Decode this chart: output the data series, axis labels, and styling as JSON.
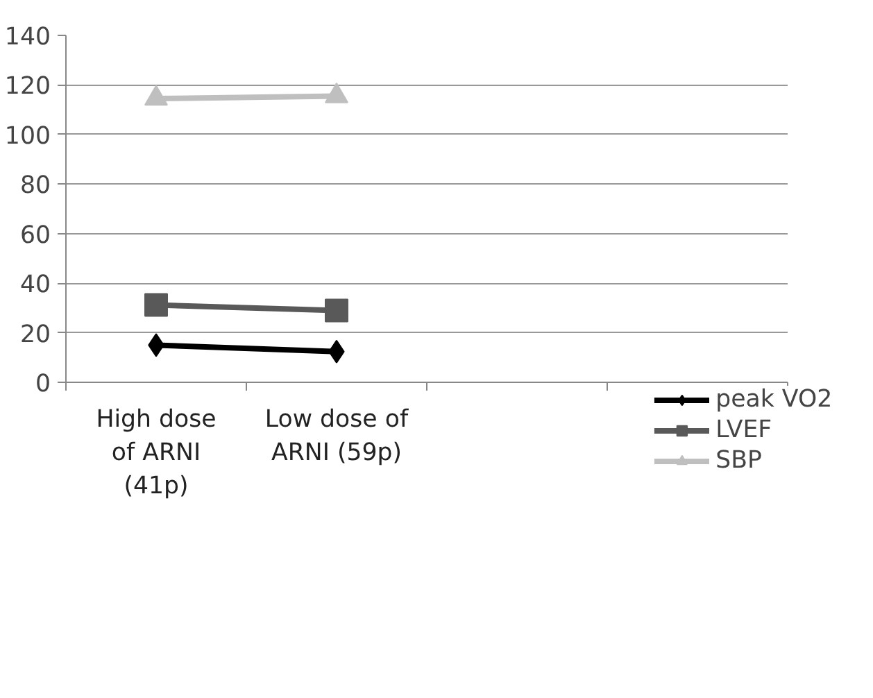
{
  "chart_data": {
    "type": "line",
    "categories": [
      "High dose of ARNI (41p)",
      "Low dose of ARNI (59p)",
      null,
      null
    ],
    "series": [
      {
        "name": "peak VO2",
        "color": "#000000",
        "marker": "diamond",
        "values": [
          15,
          12.4,
          null,
          null
        ]
      },
      {
        "name": "LVEF",
        "color": "#595959",
        "marker": "square",
        "values": [
          31.2,
          29,
          null,
          null
        ]
      },
      {
        "name": "SBP",
        "color": "#bfbfbf",
        "marker": "triangle",
        "values": [
          114.5,
          115.5,
          null,
          null
        ]
      }
    ],
    "ylim": [
      0,
      140
    ],
    "yticks": [
      0,
      20,
      40,
      60,
      80,
      100,
      120,
      140
    ],
    "grid": "y",
    "legend": "bottom right"
  }
}
